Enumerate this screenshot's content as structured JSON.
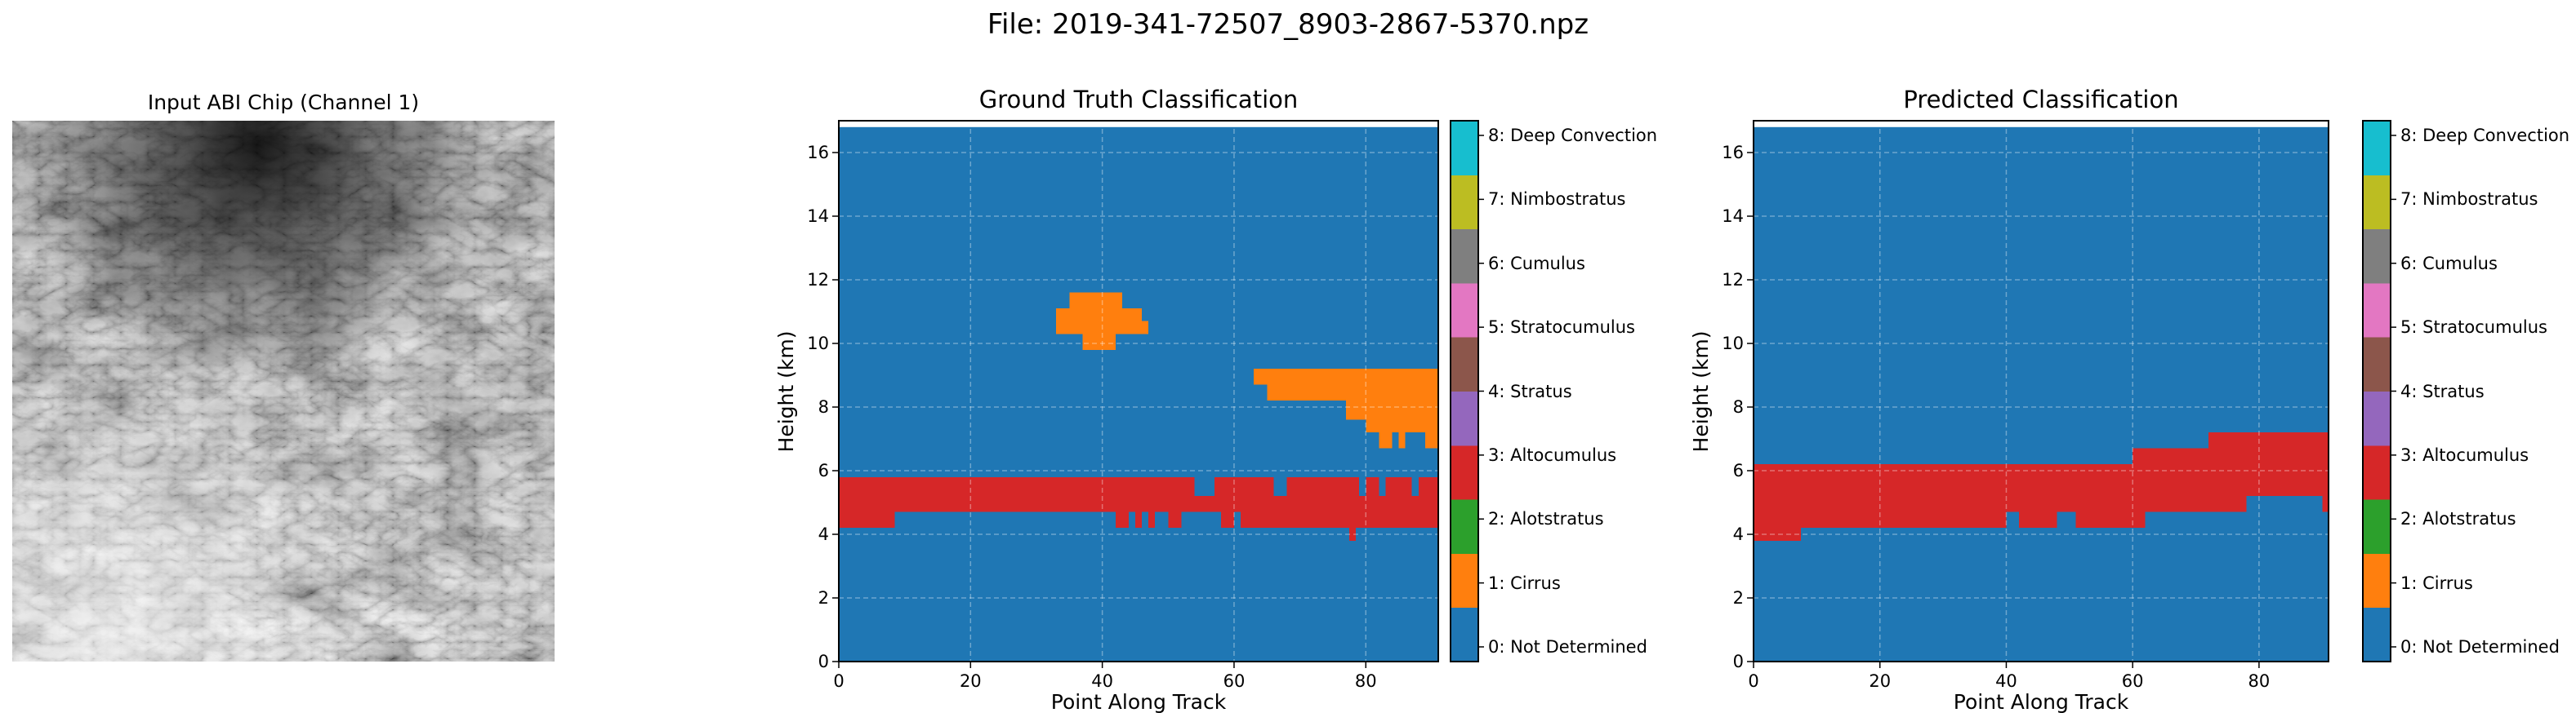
{
  "figure": {
    "suptitle": "File: 2019-341-72507_8903-2867-5370.npz"
  },
  "input_image": {
    "title": "Input ABI Chip (Channel 1)"
  },
  "colors": {
    "classes": [
      "#1f77b4",
      "#ff7f0e",
      "#2ca02c",
      "#d62728",
      "#9467bd",
      "#8c564b",
      "#e377c2",
      "#7f7f7f",
      "#bcbd22",
      "#17becf"
    ]
  },
  "chart_data": [
    {
      "type": "heatmap",
      "title": "Ground Truth Classification",
      "xlabel": "Point Along Track",
      "ylabel": "Height (km)",
      "xlim": [
        0,
        91
      ],
      "ylim": [
        0,
        17
      ],
      "xticks": [
        0,
        20,
        40,
        60,
        80
      ],
      "yticks": [
        0,
        2,
        4,
        6,
        8,
        10,
        12,
        14,
        16
      ],
      "grid": true,
      "background_class": 0,
      "data_top": 16.8,
      "regions": [
        {
          "class": 3,
          "x0": 0,
          "x1": 91,
          "y0": 4.7,
          "y1": 5.8
        },
        {
          "class": 3,
          "x0": 0,
          "x1": 8.5,
          "y0": 4.2,
          "y1": 4.7
        },
        {
          "class": 3,
          "x0": 42,
          "x1": 48,
          "y0": 4.2,
          "y1": 4.7
        },
        {
          "class": 3,
          "x0": 50,
          "x1": 52,
          "y0": 4.2,
          "y1": 4.7
        },
        {
          "class": 3,
          "x0": 58,
          "x1": 91,
          "y0": 4.2,
          "y1": 4.7
        },
        {
          "class": 3,
          "x0": 77.5,
          "x1": 78.5,
          "y0": 3.8,
          "y1": 4.2
        },
        {
          "class": 0,
          "x0": 54,
          "x1": 57,
          "y0": 5.2,
          "y1": 5.8
        },
        {
          "class": 0,
          "x0": 66,
          "x1": 68,
          "y0": 5.2,
          "y1": 5.8
        },
        {
          "class": 0,
          "x0": 79,
          "x1": 80,
          "y0": 5.2,
          "y1": 5.8
        },
        {
          "class": 0,
          "x0": 82,
          "x1": 83,
          "y0": 5.2,
          "y1": 5.8
        },
        {
          "class": 0,
          "x0": 87,
          "x1": 88,
          "y0": 5.2,
          "y1": 5.8
        },
        {
          "class": 0,
          "x0": 44,
          "x1": 45,
          "y0": 4.2,
          "y1": 4.7
        },
        {
          "class": 0,
          "x0": 46,
          "x1": 47,
          "y0": 4.2,
          "y1": 4.7
        },
        {
          "class": 0,
          "x0": 60,
          "x1": 61,
          "y0": 4.2,
          "y1": 4.7
        },
        {
          "class": 1,
          "x0": 35,
          "x1": 43,
          "y0": 11.1,
          "y1": 11.6
        },
        {
          "class": 1,
          "x0": 33,
          "x1": 46,
          "y0": 10.7,
          "y1": 11.1
        },
        {
          "class": 1,
          "x0": 33,
          "x1": 47,
          "y0": 10.3,
          "y1": 10.7
        },
        {
          "class": 1,
          "x0": 37,
          "x1": 42,
          "y0": 9.8,
          "y1": 10.3
        },
        {
          "class": 1,
          "x0": 63,
          "x1": 91,
          "y0": 8.7,
          "y1": 9.2
        },
        {
          "class": 1,
          "x0": 65,
          "x1": 91,
          "y0": 8.2,
          "y1": 8.7
        },
        {
          "class": 1,
          "x0": 77,
          "x1": 91,
          "y0": 7.6,
          "y1": 8.2
        },
        {
          "class": 1,
          "x0": 80,
          "x1": 91,
          "y0": 7.2,
          "y1": 7.6
        },
        {
          "class": 1,
          "x0": 82,
          "x1": 84,
          "y0": 6.7,
          "y1": 7.2
        },
        {
          "class": 1,
          "x0": 85,
          "x1": 86,
          "y0": 6.7,
          "y1": 7.2
        },
        {
          "class": 1,
          "x0": 89,
          "x1": 91,
          "y0": 6.7,
          "y1": 7.2
        }
      ]
    },
    {
      "type": "heatmap",
      "title": "Predicted Classification",
      "xlabel": "Point Along Track",
      "ylabel": "Height (km)",
      "xlim": [
        0,
        91
      ],
      "ylim": [
        0,
        17
      ],
      "xticks": [
        0,
        20,
        40,
        60,
        80
      ],
      "yticks": [
        0,
        2,
        4,
        6,
        8,
        10,
        12,
        14,
        16
      ],
      "grid": true,
      "background_class": 0,
      "data_top": 16.8,
      "regions": [
        {
          "class": 3,
          "x0": 0,
          "x1": 91,
          "y0": 4.7,
          "y1": 6.2
        },
        {
          "class": 3,
          "x0": 0,
          "x1": 7.5,
          "y0": 3.8,
          "y1": 4.7
        },
        {
          "class": 3,
          "x0": 7.5,
          "x1": 40,
          "y0": 4.2,
          "y1": 4.7
        },
        {
          "class": 3,
          "x0": 42,
          "x1": 48,
          "y0": 4.2,
          "y1": 4.7
        },
        {
          "class": 3,
          "x0": 51,
          "x1": 62,
          "y0": 4.2,
          "y1": 4.7
        },
        {
          "class": 3,
          "x0": 60,
          "x1": 91,
          "y0": 6.2,
          "y1": 6.7
        },
        {
          "class": 3,
          "x0": 72,
          "x1": 91,
          "y0": 6.7,
          "y1": 7.2
        },
        {
          "class": 0,
          "x0": 78,
          "x1": 91,
          "y0": 4.7,
          "y1": 5.2
        },
        {
          "class": 3,
          "x0": 90,
          "x1": 91,
          "y0": 4.7,
          "y1": 5.7
        }
      ]
    }
  ],
  "colorbar": {
    "labels": [
      "0: Not Determined",
      "1: Cirrus",
      "2: Alotstratus",
      "3: Altocumulus",
      "4: Stratus",
      "5: Stratocumulus",
      "6: Cumulus",
      "7: Nimbostratus",
      "8: Deep Convection"
    ]
  }
}
